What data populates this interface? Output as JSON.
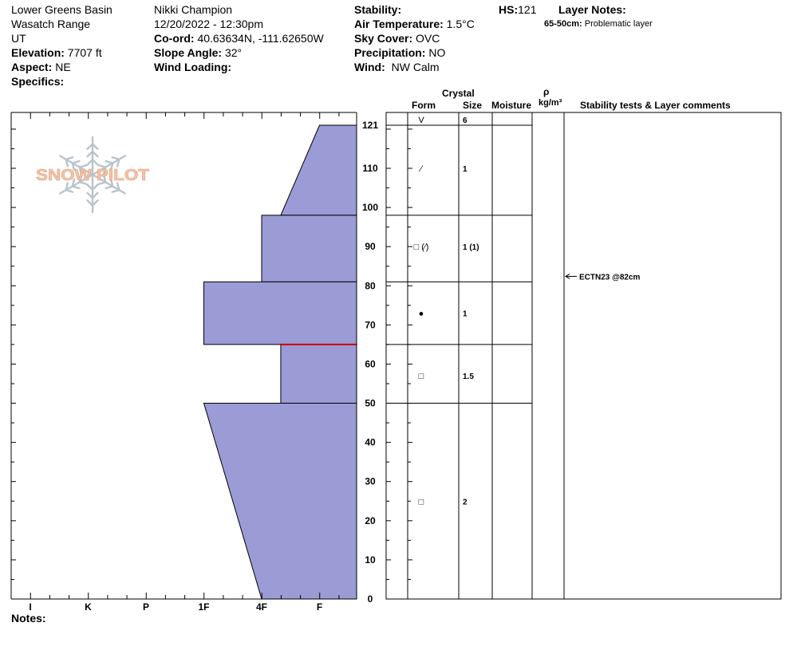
{
  "site": {
    "location": "Lower Greens Basin",
    "range": "Wasatch Range",
    "state": "UT",
    "elevation_label": "Elevation:",
    "elevation": "7707 ft",
    "aspect_label": "Aspect:",
    "aspect": "NE",
    "specifics_label": "Specifics:"
  },
  "observer": {
    "name": "Nikki Champion",
    "datetime": "12/20/2022 - 12:30pm",
    "coord_label": "Co-ord:",
    "coord": "40.63634N, -111.62650W",
    "slope_label": "Slope Angle:",
    "slope": "32°",
    "wind_loading_label": "Wind Loading:"
  },
  "conditions": {
    "stability_label": "Stability:",
    "air_temp_label": "Air Temperature:",
    "air_temp": "1.5°C",
    "sky_label": "Sky Cover:",
    "sky": "OVC",
    "precip_label": "Precipitation:",
    "precip": "NO",
    "wind_label": "Wind:",
    "wind": "NW Calm"
  },
  "hs": {
    "label": "HS:",
    "value": "121"
  },
  "layer_notes": {
    "title": "Layer Notes:",
    "range": "65-50cm:",
    "text": "Problematic layer"
  },
  "notes_label": "Notes:",
  "logo": {
    "text": "SNOW PILOT"
  },
  "columns": {
    "crystal": "Crystal",
    "form": "Form",
    "size": "Size",
    "moisture": "Moisture",
    "rho": "ρ",
    "density_unit": "kg/m³",
    "comments": "Stability tests & Layer comments"
  },
  "colors": {
    "hardness_fill": "#9b9bd6",
    "weak_layer": "#cc0000",
    "line": "#000000"
  },
  "chart_data": {
    "type": "area",
    "title": "",
    "ylabel": "",
    "xlabel": "",
    "ylim": [
      0,
      121
    ],
    "y_ticks": [
      0,
      10,
      20,
      30,
      40,
      50,
      60,
      70,
      80,
      90,
      100,
      110,
      121
    ],
    "hardness_scale": [
      "I",
      "K",
      "P",
      "1F",
      "4F",
      "F"
    ],
    "hardness_scale_positions": [
      0,
      1,
      2,
      3,
      4,
      5
    ],
    "hardness_scale_max": 5.67,
    "layers": [
      {
        "top": 121,
        "bottom": 98,
        "hardness_top": 5.0,
        "hardness_bottom": 4.33
      },
      {
        "top": 98,
        "bottom": 81,
        "hardness_top": 4.0,
        "hardness_bottom": 4.0
      },
      {
        "top": 81,
        "bottom": 65,
        "hardness_top": 3.0,
        "hardness_bottom": 3.0
      },
      {
        "top": 65,
        "bottom": 50,
        "hardness_top": 4.33,
        "hardness_bottom": 4.33
      },
      {
        "top": 50,
        "bottom": 0,
        "hardness_top": 3.0,
        "hardness_bottom": 4.0
      }
    ],
    "weak_layer_depth": 65,
    "profile_boundaries": [
      121,
      98,
      81,
      65,
      50,
      0
    ],
    "grain_rows": [
      {
        "depth": 121,
        "form": "V",
        "size": "6"
      },
      {
        "depth": 110,
        "form": "⁄",
        "size": "1"
      },
      {
        "depth": 90,
        "form": "□ (⁄)",
        "size": "1 (1)"
      },
      {
        "depth": 73,
        "form": "●",
        "size": "1"
      },
      {
        "depth": 57,
        "form": "□",
        "size": "1.5"
      },
      {
        "depth": 25,
        "form": "□",
        "size": "2"
      }
    ],
    "stability_tests": [
      {
        "depth": 82,
        "label": "ECTN23 @82cm"
      }
    ]
  }
}
